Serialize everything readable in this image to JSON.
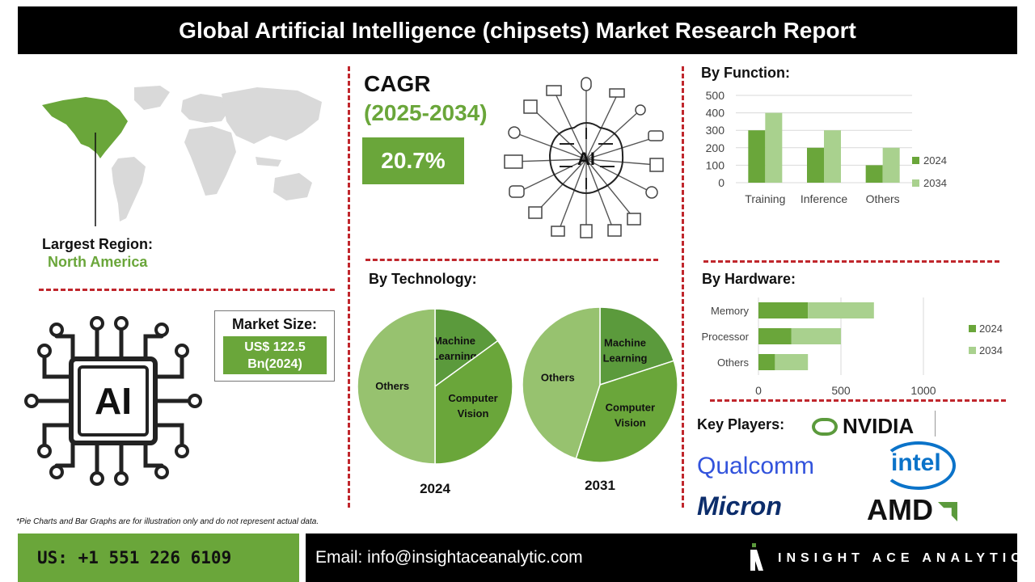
{
  "header": {
    "title": "Global Artificial Intelligence (chipsets) Market Research Report"
  },
  "region": {
    "label": "Largest Region:",
    "value": "North America"
  },
  "cagr": {
    "label": "CAGR",
    "years": "(2025-2034)",
    "value": "20.7%"
  },
  "center_icon": {
    "text": "AI",
    "icon": "ai-brain-network-icon"
  },
  "chip_icon": {
    "text": "AI",
    "icon": "ai-chip-icon"
  },
  "market_size": {
    "label": "Market Size:",
    "value": "US$ 122.5\nBn(2024)"
  },
  "technology": {
    "title": "By Technology:"
  },
  "function_section": {
    "title": "By Function:"
  },
  "hardware_section": {
    "title": "By Hardware:"
  },
  "key_players": {
    "label": "Key Players:",
    "logos": [
      "NVIDIA",
      "Qualcomm",
      "intel",
      "Micron",
      "AMD"
    ]
  },
  "note": "*Pie Charts and Bar Graphs are for illustration only and do not represent actual data.",
  "footer": {
    "phone": "US: +1 551 226 6109",
    "email": "Email: info@insightaceanalytic.com",
    "brand": "INSIGHT ACE ANALYTIC"
  },
  "colors": {
    "dark_green": "#5b9a3c",
    "mid_green": "#6aa63a",
    "light_green": "#a9d18e",
    "accent_red": "#c0272d"
  },
  "chart_data": [
    {
      "type": "bar",
      "id": "function",
      "categories": [
        "Training",
        "Inference",
        "Others"
      ],
      "series": [
        {
          "name": "2024",
          "values": [
            300,
            200,
            100
          ]
        },
        {
          "name": "2034",
          "values": [
            400,
            300,
            200
          ]
        }
      ],
      "ylim": [
        0,
        500
      ],
      "yticks": [
        0,
        100,
        200,
        300,
        400,
        500
      ],
      "grid": true,
      "legend": "right"
    },
    {
      "type": "bar",
      "id": "hardware",
      "orientation": "horizontal",
      "stacked": true,
      "categories": [
        "Memory",
        "Processor",
        "Others"
      ],
      "series": [
        {
          "name": "2024",
          "values": [
            300,
            200,
            100
          ]
        },
        {
          "name": "2034",
          "values": [
            400,
            300,
            200
          ]
        }
      ],
      "xlim": [
        0,
        1000
      ],
      "xticks": [
        0,
        500,
        1000
      ],
      "grid": true,
      "legend": "right"
    },
    {
      "type": "pie",
      "id": "tech2024",
      "year": "2024",
      "slices": [
        {
          "label": "Machine Learning",
          "value": 15
        },
        {
          "label": "Computer Vision",
          "value": 35
        },
        {
          "label": "Others",
          "value": 50
        }
      ]
    },
    {
      "type": "pie",
      "id": "tech2031",
      "year": "2031",
      "slices": [
        {
          "label": "Machine Learning",
          "value": 20
        },
        {
          "label": "Computer Vision",
          "value": 35
        },
        {
          "label": "Others",
          "value": 45
        }
      ]
    }
  ]
}
